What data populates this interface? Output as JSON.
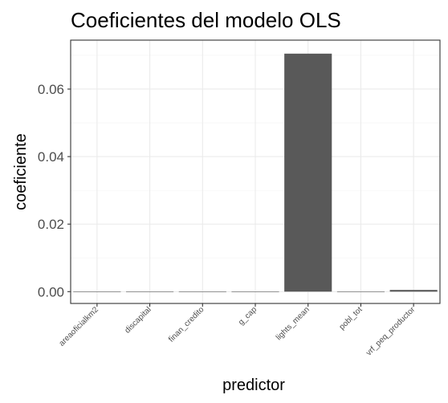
{
  "chart_data": {
    "type": "bar",
    "title": "Coeficientes del modelo OLS",
    "xlabel": "predictor",
    "ylabel": "coeficiente",
    "categories": [
      "areaoficialkm2",
      "discapital",
      "finan_credito",
      "g_cap",
      "lights_mean",
      "pobl_tot",
      "vrf_peq_productor"
    ],
    "values": [
      0.0,
      0.0,
      0.0,
      0.0,
      0.0705,
      0.0,
      0.0005
    ],
    "ylim": [
      -0.0035,
      0.0745
    ],
    "yticks": [
      0.0,
      0.02,
      0.04,
      0.06
    ],
    "ytick_labels": [
      "0.00",
      "0.02",
      "0.04",
      "0.06"
    ],
    "grid": true,
    "bar_color": "#595959"
  }
}
